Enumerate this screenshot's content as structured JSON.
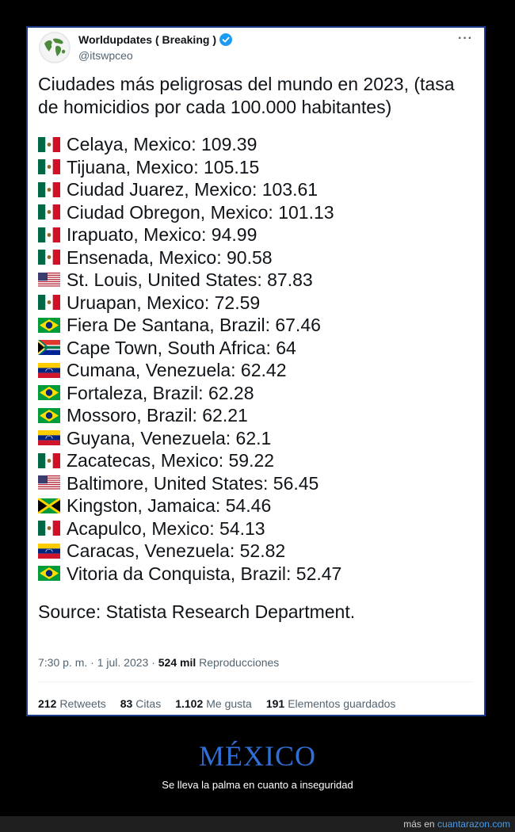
{
  "tweet": {
    "author_name": "Worldupdates ( Breaking )",
    "handle": "@itswpceo",
    "intro": "Ciudades más peligrosas del mundo en 2023, (tasa de homicidios por cada 100.000 habitantes)",
    "cities": [
      {
        "flag": "MX",
        "text": "Celaya, Mexico: 109.39"
      },
      {
        "flag": "MX",
        "text": "Tijuana, Mexico: 105.15"
      },
      {
        "flag": "MX",
        "text": "Ciudad Juarez, Mexico: 103.61"
      },
      {
        "flag": "MX",
        "text": "Ciudad Obregon, Mexico: 101.13"
      },
      {
        "flag": "MX",
        "text": "Irapuato, Mexico: 94.99"
      },
      {
        "flag": "MX",
        "text": "Ensenada, Mexico: 90.58"
      },
      {
        "flag": "US",
        "text": "St. Louis, United States: 87.83"
      },
      {
        "flag": "MX",
        "text": "Uruapan, Mexico: 72.59"
      },
      {
        "flag": "BR",
        "text": "Fiera De Santana, Brazil: 67.46"
      },
      {
        "flag": "ZA",
        "text": "Cape Town, South Africa: 64"
      },
      {
        "flag": "VE",
        "text": "Cumana, Venezuela: 62.42"
      },
      {
        "flag": "BR",
        "text": "Fortaleza, Brazil: 62.28"
      },
      {
        "flag": "BR",
        "text": "Mossoro, Brazil: 62.21"
      },
      {
        "flag": "VE",
        "text": "Guyana, Venezuela: 62.1"
      },
      {
        "flag": "MX",
        "text": "Zacatecas, Mexico: 59.22"
      },
      {
        "flag": "US",
        "text": "Baltimore, United States: 56.45"
      },
      {
        "flag": "JM",
        "text": "Kingston, Jamaica: 54.46"
      },
      {
        "flag": "MX",
        "text": "Acapulco, Mexico: 54.13"
      },
      {
        "flag": "VE",
        "text": "Caracas, Venezuela: 52.82"
      },
      {
        "flag": "BR",
        "text": "Vitoria da Conquista, Brazil: 52.47"
      }
    ],
    "source": "Source: Statista Research Department.",
    "timestamp": "7:30 p. m. · 1 jul. 2023 ·",
    "views_count": "524 mil",
    "views_label": "Reproducciones",
    "stats": [
      {
        "count": "212",
        "label": "Retweets"
      },
      {
        "count": "83",
        "label": "Citas"
      },
      {
        "count": "1.102",
        "label": "Me gusta"
      },
      {
        "count": "191",
        "label": "Elementos guardados"
      }
    ]
  },
  "caption": {
    "title": "MÉXICO",
    "subtitle": "Se lleva la palma en cuanto a inseguridad"
  },
  "footer": {
    "prefix": "más en",
    "link": "cuantarazon.com"
  },
  "colors": {
    "verified": "#1d9bf0",
    "caption_title": "#2f6fd6",
    "footer_link": "#4a9be8",
    "card_border": "#1d3a8a"
  }
}
